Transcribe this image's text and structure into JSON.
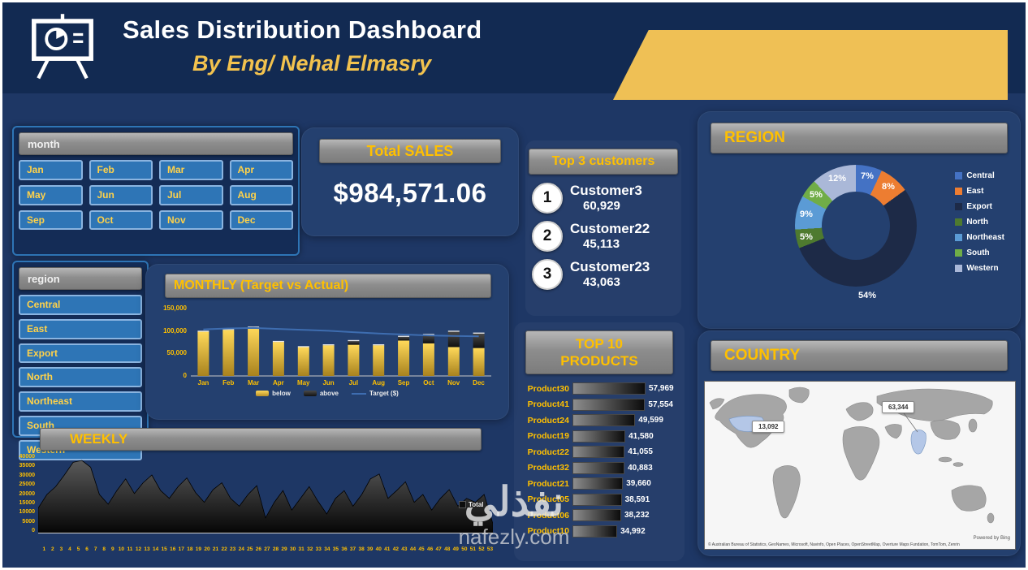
{
  "header": {
    "title": "Sales Distribution Dashboard",
    "subtitle": "By Eng/ Nehal Elmasry"
  },
  "slicers": {
    "month": {
      "label": "month",
      "items": [
        "Jan",
        "Feb",
        "Mar",
        "Apr",
        "May",
        "Jun",
        "Jul",
        "Aug",
        "Sep",
        "Oct",
        "Nov",
        "Dec"
      ]
    },
    "region": {
      "label": "region",
      "items": [
        "Central",
        "East",
        "Export",
        "North",
        "Northeast",
        "South",
        "Western"
      ]
    }
  },
  "total_sales": {
    "title": "Total SALES",
    "value": "$984,571.06"
  },
  "top_customers": {
    "title": "Top 3 customers",
    "items": [
      {
        "rank": "1",
        "name": "Customer3",
        "value": "60,929"
      },
      {
        "rank": "2",
        "name": "Customer22",
        "value": "45,113"
      },
      {
        "rank": "3",
        "name": "Customer23",
        "value": "43,063"
      }
    ]
  },
  "top_products": {
    "title": "TOP 10 PRODUCTS"
  },
  "region_panel": {
    "title": "REGION"
  },
  "weekly": {
    "title": "WEEKLY",
    "legend": "Total"
  },
  "country": {
    "title": "COUNTRY",
    "callouts": [
      {
        "value": "13,092"
      },
      {
        "value": "63,344"
      }
    ],
    "powered_by": "Powered by Bing",
    "attribution": "© Australian Bureau of Statistics, GeoNames, Microsoft, Navinfo, Open Places, OpenStreetMap, Overture Maps Fundation, TomTom, Zenrin"
  },
  "watermark": {
    "line1": "نفذلي",
    "line2": "nafezly.com"
  },
  "chart_data": [
    {
      "id": "monthly_target_vs_actual",
      "type": "bar",
      "title": "MONTHLY (Target vs Actual)",
      "categories": [
        "Jan",
        "Feb",
        "Mar",
        "Apr",
        "May",
        "Jun",
        "Jul",
        "Aug",
        "Sep",
        "Oct",
        "Nov",
        "Dec"
      ],
      "series": [
        {
          "name": "below",
          "type": "bar",
          "color": "#f7c843",
          "values": [
            95000,
            99000,
            104000,
            73000,
            62000,
            66000,
            67000,
            66000,
            76000,
            70000,
            62000,
            60000
          ]
        },
        {
          "name": "above",
          "type": "bar",
          "color": "#2b2b2b",
          "values": [
            0,
            0,
            0,
            0,
            0,
            0,
            8000,
            0,
            8000,
            18000,
            33000,
            31000
          ]
        },
        {
          "name": "Target ($)",
          "type": "line",
          "color": "#3e6db0",
          "values": [
            100000,
            102000,
            103000,
            101000,
            99000,
            97000,
            94000,
            91000,
            89000,
            87000,
            86000,
            85000
          ]
        }
      ],
      "ylim": [
        0,
        150000
      ],
      "yticks": [
        "150,000",
        "100,000",
        "50,000",
        "0"
      ],
      "legend_position": "bottom"
    },
    {
      "id": "weekly_total",
      "type": "area",
      "title": "WEEKLY",
      "x_labels": [
        "1",
        "2",
        "3",
        "4",
        "5",
        "6",
        "7",
        "8",
        "9",
        "10",
        "11",
        "12",
        "13",
        "14",
        "15",
        "16",
        "17",
        "18",
        "19",
        "20",
        "21",
        "22",
        "23",
        "24",
        "25",
        "26",
        "27",
        "28",
        "29",
        "30",
        "31",
        "32",
        "33",
        "34",
        "35",
        "36",
        "37",
        "38",
        "39",
        "40",
        "41",
        "42",
        "43",
        "44",
        "45",
        "46",
        "47",
        "48",
        "49",
        "50",
        "51",
        "52",
        "53"
      ],
      "series": [
        {
          "name": "Total",
          "color": "#1a1a1a",
          "values": [
            13000,
            20000,
            24000,
            30000,
            36500,
            37500,
            34000,
            20000,
            15000,
            22000,
            28000,
            20500,
            26000,
            30000,
            22000,
            18000,
            24000,
            28500,
            21000,
            16000,
            22500,
            26000,
            18000,
            14000,
            20000,
            24500,
            8000,
            16000,
            22000,
            12000,
            18000,
            24000,
            16500,
            10000,
            18000,
            22000,
            14000,
            20000,
            28000,
            30500,
            18000,
            22000,
            26500,
            16000,
            20000,
            12000,
            18000,
            22500,
            14000,
            18000,
            16000,
            20000,
            5000
          ]
        }
      ],
      "ylim": [
        0,
        40000
      ],
      "yticks": [
        "40000",
        "35000",
        "30000",
        "25000",
        "20000",
        "15000",
        "10000",
        "5000",
        "0"
      ]
    },
    {
      "id": "top_10_products",
      "type": "bar",
      "orientation": "horizontal",
      "title": "TOP 10 PRODUCTS",
      "categories": [
        "Product30",
        "Product41",
        "Product24",
        "Product19",
        "Product22",
        "Product32",
        "Product21",
        "Product05",
        "Product06",
        "Product10"
      ],
      "values": [
        57969,
        57554,
        49599,
        41580,
        41055,
        40883,
        39660,
        38591,
        38232,
        34992
      ],
      "value_labels": [
        "57,969",
        "57,554",
        "49,599",
        "41,580",
        "41,055",
        "40,883",
        "39,660",
        "38,591",
        "38,232",
        "34,992"
      ]
    },
    {
      "id": "region_share",
      "type": "pie",
      "donut": true,
      "title": "REGION",
      "segments": [
        {
          "label": "Central",
          "pct": 7,
          "color": "#4472c4"
        },
        {
          "label": "East",
          "pct": 8,
          "color": "#ed7d31"
        },
        {
          "label": "Export",
          "pct": 54,
          "color": "#1d2a47"
        },
        {
          "label": "North",
          "pct": 5,
          "color": "#4e7a2f"
        },
        {
          "label": "Northeast",
          "pct": 9,
          "color": "#5b9bd5"
        },
        {
          "label": "South",
          "pct": 5,
          "color": "#70ad47"
        },
        {
          "label": "Western",
          "pct": 12,
          "color": "#aab8d8"
        }
      ],
      "pct_labels": [
        "7%",
        "8%",
        "54%",
        "5%",
        "9%",
        "5%",
        "12%"
      ],
      "legend_position": "right"
    },
    {
      "id": "country_map",
      "type": "heatmap",
      "title": "COUNTRY",
      "callout_values": [
        "13,092",
        "63,344"
      ]
    }
  ]
}
